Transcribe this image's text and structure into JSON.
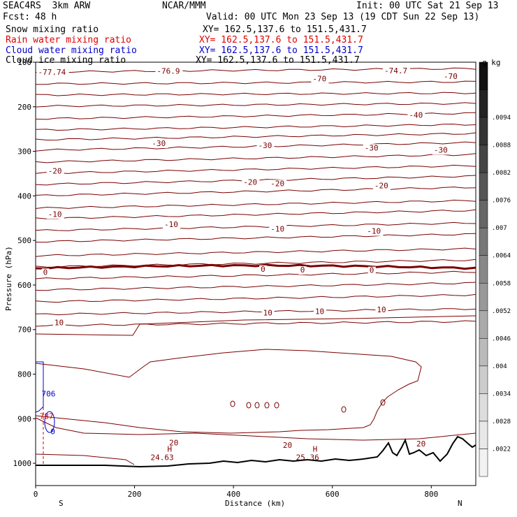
{
  "header": {
    "model": "SEAC4RS  3km ARW",
    "center": "NCAR/MMM",
    "init": "Init: 00 UTC Sat 21 Sep 13",
    "fcst_label": "Fcst:",
    "fcst_value": "48 h",
    "valid": "Valid: 00 UTC Mon 23 Sep 13 (19 CDT Sun 22 Sep 13)"
  },
  "fields": [
    {
      "name": "Snow mixing ratio",
      "xy": "XY= 162.5,137.6 to 151.5,431.7",
      "color": "#000000"
    },
    {
      "name": "Rain water mixing ratio",
      "xy": "XY= 162.5,137.6 to 151.5,431.7",
      "color": "#e00000"
    },
    {
      "name": "Cloud water mixing ratio",
      "xy": "XY= 162.5,137.6 to 151.5,431.7",
      "color": "#0000cc"
    },
    {
      "name": "Cloud ice mixing ratio",
      "xy": "XY= 162.5,137.6 to 151.5,431.7",
      "color": "#000000"
    }
  ],
  "chart_data": {
    "type": "cross-section",
    "xlabel": "Distance (km)",
    "ylabel": "Pressure (hPa)",
    "xlim": [
      0,
      890
    ],
    "ylim": [
      1050,
      100
    ],
    "x_ticks": [
      "0",
      "200",
      "400",
      "600",
      "800"
    ],
    "y_ticks": [
      "100",
      "200",
      "300",
      "400",
      "500",
      "600",
      "700",
      "800",
      "900",
      "1000"
    ],
    "direction_left": "S",
    "direction_right": "N",
    "colorbar": {
      "unit": "g kg",
      "labels": [
        ".0094",
        ".0088",
        ".0082",
        ".0076",
        ".007",
        ".0064",
        ".0058",
        ".0052",
        ".0046",
        ".004",
        ".0034",
        ".0028",
        ".0022"
      ],
      "colors": [
        "#111111",
        "#222222",
        "#333333",
        "#444444",
        "#555555",
        "#666666",
        "#777777",
        "#888888",
        "#999999",
        "#aaaaaa",
        "#bbbbbb",
        "#cccccc",
        "#dddddd",
        "#e8e8e8",
        "#f2f2f2"
      ]
    },
    "temperature_labels": [
      {
        "x": 5,
        "p": 128,
        "text": "-77.74"
      },
      {
        "x": 245,
        "p": 126,
        "text": "-76.9"
      },
      {
        "x": 705,
        "p": 125,
        "text": "-74.7"
      },
      {
        "x": 560,
        "p": 143,
        "text": "-70"
      },
      {
        "x": 825,
        "p": 138,
        "text": "-70"
      },
      {
        "x": 755,
        "p": 225,
        "text": "-40"
      },
      {
        "x": 235,
        "p": 288,
        "text": "-30"
      },
      {
        "x": 450,
        "p": 293,
        "text": "-30"
      },
      {
        "x": 665,
        "p": 298,
        "text": "-30"
      },
      {
        "x": 805,
        "p": 303,
        "text": "-30"
      },
      {
        "x": 25,
        "p": 350,
        "text": "-20"
      },
      {
        "x": 420,
        "p": 375,
        "text": "-20"
      },
      {
        "x": 475,
        "p": 378,
        "text": "-20"
      },
      {
        "x": 685,
        "p": 383,
        "text": "-20"
      },
      {
        "x": 25,
        "p": 447,
        "text": "-10"
      },
      {
        "x": 260,
        "p": 470,
        "text": "-10"
      },
      {
        "x": 475,
        "p": 480,
        "text": "-10"
      },
      {
        "x": 670,
        "p": 485,
        "text": "-10"
      },
      {
        "x": 15,
        "p": 577,
        "text": "0"
      },
      {
        "x": 455,
        "p": 570,
        "text": "0"
      },
      {
        "x": 535,
        "p": 572,
        "text": "0"
      },
      {
        "x": 675,
        "p": 573,
        "text": "0"
      },
      {
        "x": 38,
        "p": 690,
        "text": "10"
      },
      {
        "x": 460,
        "p": 668,
        "text": "10"
      },
      {
        "x": 565,
        "p": 665,
        "text": "10"
      },
      {
        "x": 690,
        "p": 661,
        "text": "10"
      },
      {
        "x": 270,
        "p": 960,
        "text": "20"
      },
      {
        "x": 500,
        "p": 965,
        "text": "20"
      },
      {
        "x": 770,
        "p": 962,
        "text": "20"
      }
    ],
    "pressure_extremes": [
      {
        "x": 272,
        "p": 990,
        "mark": "H",
        "value": "24.63"
      },
      {
        "x": 566,
        "p": 990,
        "mark": "H",
        "value": "25.36"
      }
    ],
    "rain_labels": [
      {
        "x": 8,
        "p": 900,
        "text": "787"
      }
    ],
    "cloud_labels": [
      {
        "x": 12,
        "p": 850,
        "text": "706"
      },
      {
        "x": 30,
        "p": 935,
        "text": "0"
      }
    ]
  }
}
